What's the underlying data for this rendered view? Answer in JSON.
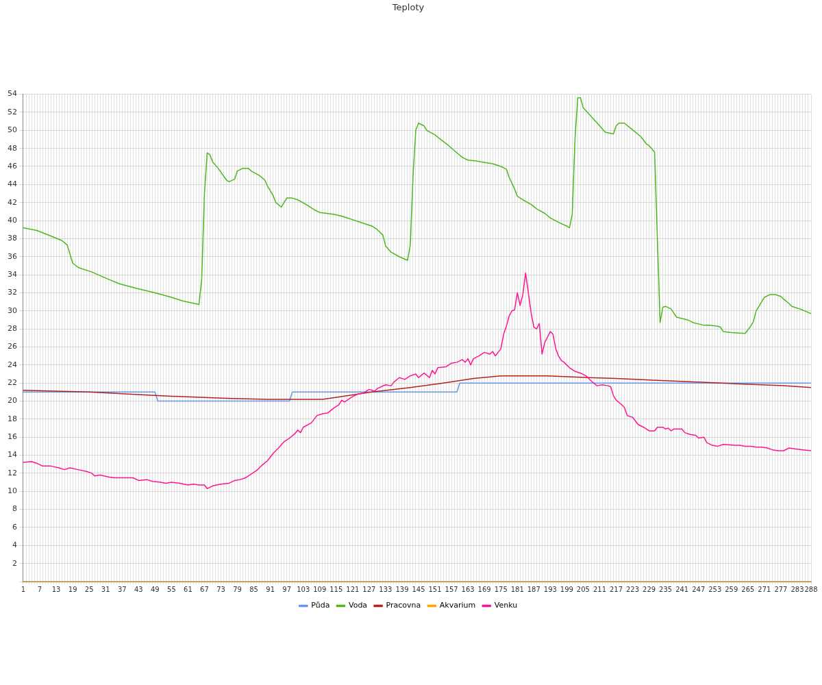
{
  "chart_data": {
    "type": "line",
    "title": "Teploty",
    "xlim": [
      1,
      288
    ],
    "xticks": [
      1,
      {
        "value": 2,
        "label": null
      },
      {
        "value": 3,
        "label": null
      },
      {
        "value": 4,
        "label": null
      },
      {
        "value": 5,
        "label": null
      },
      {
        "value": 6,
        "label": null
      },
      7,
      {
        "value": 8,
        "label": null
      },
      {
        "value": 9,
        "label": null
      },
      {
        "value": 10,
        "label": null
      },
      {
        "value": 11,
        "label": null
      },
      {
        "value": 12,
        "label": null
      },
      13,
      {
        "value": 14,
        "label": null
      },
      {
        "value": 15,
        "label": null
      },
      {
        "value": 16,
        "label": null
      },
      {
        "value": 17,
        "label": null
      },
      {
        "value": 18,
        "label": null
      },
      19,
      {
        "value": 20,
        "label": null
      },
      {
        "value": 21,
        "label": null
      },
      {
        "value": 22,
        "label": null
      },
      {
        "value": 23,
        "label": null
      },
      {
        "value": 24,
        "label": null
      },
      25,
      {
        "value": 26,
        "label": null
      },
      {
        "value": 27,
        "label": null
      },
      {
        "value": 28,
        "label": null
      },
      {
        "value": 29,
        "label": null
      },
      {
        "value": 30,
        "label": null
      },
      31,
      {
        "value": 32,
        "label": null
      },
      {
        "value": 33,
        "label": null
      },
      {
        "value": 34,
        "label": null
      },
      {
        "value": 35,
        "label": null
      },
      {
        "value": 36,
        "label": null
      },
      37,
      {
        "value": 38,
        "label": null
      },
      {
        "value": 39,
        "label": null
      },
      {
        "value": 40,
        "label": null
      },
      {
        "value": 41,
        "label": null
      },
      {
        "value": 42,
        "label": null
      },
      43,
      {
        "value": 44,
        "label": null
      },
      {
        "value": 45,
        "label": null
      },
      {
        "value": 46,
        "label": null
      },
      {
        "value": 47,
        "label": null
      },
      {
        "value": 48,
        "label": null
      },
      49,
      {
        "value": 50,
        "label": null
      },
      {
        "value": 51,
        "label": null
      },
      {
        "value": 52,
        "label": null
      },
      {
        "value": 53,
        "label": null
      },
      {
        "value": 54,
        "label": null
      },
      55,
      {
        "value": 56,
        "label": null
      },
      {
        "value": 57,
        "label": null
      },
      {
        "value": 58,
        "label": null
      },
      {
        "value": 59,
        "label": null
      },
      {
        "value": 60,
        "label": null
      },
      61,
      {
        "value": 62,
        "label": null
      },
      {
        "value": 63,
        "label": null
      },
      {
        "value": 64,
        "label": null
      },
      {
        "value": 65,
        "label": null
      },
      {
        "value": 66,
        "label": null
      },
      67,
      {
        "value": 68,
        "label": null
      },
      {
        "value": 69,
        "label": null
      },
      {
        "value": 70,
        "label": null
      },
      {
        "value": 71,
        "label": null
      },
      {
        "value": 72,
        "label": null
      },
      73,
      {
        "value": 74,
        "label": null
      },
      {
        "value": 75,
        "label": null
      },
      {
        "value": 76,
        "label": null
      },
      {
        "value": 77,
        "label": null
      },
      {
        "value": 78,
        "label": null
      },
      79,
      {
        "value": 80,
        "label": null
      },
      {
        "value": 81,
        "label": null
      },
      {
        "value": 82,
        "label": null
      },
      {
        "value": 83,
        "label": null
      },
      {
        "value": 84,
        "label": null
      },
      85,
      {
        "value": 86,
        "label": null
      },
      {
        "value": 87,
        "label": null
      },
      {
        "value": 88,
        "label": null
      },
      {
        "value": 89,
        "label": null
      },
      {
        "value": 90,
        "label": null
      },
      91,
      {
        "value": 92,
        "label": null
      },
      {
        "value": 93,
        "label": null
      },
      {
        "value": 94,
        "label": null
      },
      {
        "value": 95,
        "label": null
      },
      {
        "value": 96,
        "label": null
      },
      97,
      {
        "value": 98,
        "label": null
      },
      {
        "value": 99,
        "label": null
      },
      {
        "value": 100,
        "label": null
      },
      {
        "value": 101,
        "label": null
      },
      {
        "value": 102,
        "label": null
      },
      103,
      {
        "value": 104,
        "label": null
      },
      {
        "value": 105,
        "label": null
      },
      {
        "value": 106,
        "label": null
      },
      {
        "value": 107,
        "label": null
      },
      {
        "value": 108,
        "label": null
      },
      109,
      {
        "value": 110,
        "label": null
      },
      {
        "value": 111,
        "label": null
      },
      {
        "value": 112,
        "label": null
      },
      {
        "value": 113,
        "label": null
      },
      {
        "value": 114,
        "label": null
      },
      115,
      {
        "value": 116,
        "label": null
      },
      {
        "value": 117,
        "label": null
      },
      {
        "value": 118,
        "label": null
      },
      {
        "value": 119,
        "label": null
      },
      {
        "value": 120,
        "label": null
      },
      121,
      {
        "value": 122,
        "label": null
      },
      {
        "value": 123,
        "label": null
      },
      {
        "value": 124,
        "label": null
      },
      {
        "value": 125,
        "label": null
      },
      {
        "value": 126,
        "label": null
      },
      127,
      {
        "value": 128,
        "label": null
      },
      {
        "value": 129,
        "label": null
      },
      {
        "value": 130,
        "label": null
      },
      {
        "value": 131,
        "label": null
      },
      {
        "value": 132,
        "label": null
      },
      133,
      {
        "value": 134,
        "label": null
      },
      {
        "value": 135,
        "label": null
      },
      {
        "value": 136,
        "label": null
      },
      {
        "value": 137,
        "label": null
      },
      {
        "value": 138,
        "label": null
      },
      139,
      {
        "value": 140,
        "label": null
      },
      {
        "value": 141,
        "label": null
      },
      {
        "value": 142,
        "label": null
      },
      {
        "value": 143,
        "label": null
      },
      {
        "value": 144,
        "label": null
      },
      145,
      {
        "value": 146,
        "label": null
      },
      {
        "value": 147,
        "label": null
      },
      {
        "value": 148,
        "label": null
      },
      {
        "value": 149,
        "label": null
      },
      {
        "value": 150,
        "label": null
      },
      151,
      {
        "value": 152,
        "label": null
      },
      {
        "value": 153,
        "label": null
      },
      {
        "value": 154,
        "label": null
      },
      {
        "value": 155,
        "label": null
      },
      {
        "value": 156,
        "label": null
      },
      157,
      {
        "value": 158,
        "label": null
      },
      {
        "value": 159,
        "label": null
      },
      {
        "value": 160,
        "label": null
      },
      {
        "value": 161,
        "label": null
      },
      {
        "value": 162,
        "label": null
      },
      163,
      {
        "value": 164,
        "label": null
      },
      {
        "value": 165,
        "label": null
      },
      {
        "value": 166,
        "label": null
      },
      {
        "value": 167,
        "label": null
      },
      {
        "value": 168,
        "label": null
      },
      169,
      {
        "value": 170,
        "label": null
      },
      {
        "value": 171,
        "label": null
      },
      {
        "value": 172,
        "label": null
      },
      {
        "value": 173,
        "label": null
      },
      {
        "value": 174,
        "label": null
      },
      175,
      {
        "value": 176,
        "label": null
      },
      {
        "value": 177,
        "label": null
      },
      {
        "value": 178,
        "label": null
      },
      {
        "value": 179,
        "label": null
      },
      {
        "value": 180,
        "label": null
      },
      181,
      {
        "value": 182,
        "label": null
      },
      {
        "value": 183,
        "label": null
      },
      {
        "value": 184,
        "label": null
      },
      {
        "value": 185,
        "label": null
      },
      {
        "value": 186,
        "label": null
      },
      187,
      {
        "value": 188,
        "label": null
      },
      {
        "value": 189,
        "label": null
      },
      {
        "value": 190,
        "label": null
      },
      {
        "value": 191,
        "label": null
      },
      {
        "value": 192,
        "label": null
      },
      193,
      {
        "value": 194,
        "label": null
      },
      {
        "value": 195,
        "label": null
      },
      {
        "value": 196,
        "label": null
      },
      {
        "value": 197,
        "label": null
      },
      {
        "value": 198,
        "label": null
      },
      199,
      {
        "value": 200,
        "label": null
      },
      {
        "value": 201,
        "label": null
      },
      {
        "value": 202,
        "label": null
      },
      {
        "value": 203,
        "label": null
      },
      {
        "value": 204,
        "label": null
      },
      205,
      {
        "value": 206,
        "label": null
      },
      {
        "value": 207,
        "label": null
      },
      {
        "value": 208,
        "label": null
      },
      {
        "value": 209,
        "label": null
      },
      {
        "value": 210,
        "label": null
      },
      211,
      {
        "value": 212,
        "label": null
      },
      {
        "value": 213,
        "label": null
      },
      {
        "value": 214,
        "label": null
      },
      {
        "value": 215,
        "label": null
      },
      {
        "value": 216,
        "label": null
      },
      217,
      {
        "value": 218,
        "label": null
      },
      {
        "value": 219,
        "label": null
      },
      {
        "value": 220,
        "label": null
      },
      {
        "value": 221,
        "label": null
      },
      {
        "value": 222,
        "label": null
      },
      223,
      {
        "value": 224,
        "label": null
      },
      {
        "value": 225,
        "label": null
      },
      {
        "value": 226,
        "label": null
      },
      {
        "value": 227,
        "label": null
      },
      {
        "value": 228,
        "label": null
      },
      229,
      {
        "value": 230,
        "label": null
      },
      {
        "value": 231,
        "label": null
      },
      {
        "value": 232,
        "label": null
      },
      {
        "value": 233,
        "label": null
      },
      {
        "value": 234,
        "label": null
      },
      235,
      {
        "value": 236,
        "label": null
      },
      {
        "value": 237,
        "label": null
      },
      {
        "value": 238,
        "label": null
      },
      {
        "value": 239,
        "label": null
      },
      {
        "value": 240,
        "label": null
      },
      241,
      {
        "value": 242,
        "label": null
      },
      {
        "value": 243,
        "label": null
      },
      {
        "value": 244,
        "label": null
      },
      {
        "value": 245,
        "label": null
      },
      {
        "value": 246,
        "label": null
      },
      247,
      {
        "value": 248,
        "label": null
      },
      {
        "value": 249,
        "label": null
      },
      {
        "value": 250,
        "label": null
      },
      {
        "value": 251,
        "label": null
      },
      {
        "value": 252,
        "label": null
      },
      253,
      {
        "value": 254,
        "label": null
      },
      {
        "value": 255,
        "label": null
      },
      {
        "value": 256,
        "label": null
      },
      {
        "value": 257,
        "label": null
      },
      {
        "value": 258,
        "label": null
      },
      259,
      {
        "value": 260,
        "label": null
      },
      {
        "value": 261,
        "label": null
      },
      {
        "value": 262,
        "label": null
      },
      {
        "value": 263,
        "label": null
      },
      {
        "value": 264,
        "label": null
      },
      265,
      {
        "value": 266,
        "label": null
      },
      {
        "value": 267,
        "label": null
      },
      {
        "value": 268,
        "label": null
      },
      {
        "value": 269,
        "label": null
      },
      {
        "value": 270,
        "label": null
      },
      271,
      {
        "value": 272,
        "label": null
      },
      {
        "value": 273,
        "label": null
      },
      {
        "value": 274,
        "label": null
      },
      {
        "value": 275,
        "label": null
      },
      {
        "value": 276,
        "label": null
      },
      277,
      {
        "value": 278,
        "label": null
      },
      {
        "value": 279,
        "label": null
      },
      {
        "value": 280,
        "label": null
      },
      {
        "value": 281,
        "label": null
      },
      {
        "value": 282,
        "label": null
      },
      283,
      {
        "value": 284,
        "label": null
      },
      {
        "value": 285,
        "label": null
      },
      {
        "value": 286,
        "label": null
      },
      {
        "value": 287,
        "label": null
      },
      288
    ],
    "ylim": [
      0,
      54
    ],
    "yticks": [
      {
        "value": 0,
        "label": null
      },
      2,
      4,
      6,
      8,
      10,
      12,
      14,
      16,
      18,
      20,
      22,
      24,
      26,
      28,
      30,
      32,
      34,
      36,
      38,
      40,
      42,
      44,
      46,
      48,
      50,
      52,
      54
    ],
    "grid": true,
    "legend": "bottom",
    "marker": "none",
    "line_style": "solid",
    "series": [
      {
        "name": "Půda",
        "color": "#6495ed",
        "x": [
          1,
          49,
          50,
          98,
          99,
          159,
          160,
          288
        ],
        "values": [
          21,
          21,
          20,
          20,
          21,
          21,
          22,
          22
        ]
      },
      {
        "name": "Voda",
        "color": "#4cb81c",
        "x": [
          1,
          6,
          11,
          15,
          17,
          19,
          21,
          26,
          32,
          36,
          42,
          49,
          55,
          59,
          65,
          66,
          67,
          68,
          69,
          70,
          72,
          75,
          76,
          78,
          79,
          81,
          83,
          84,
          87,
          89,
          90,
          92,
          93,
          95,
          97,
          99,
          101,
          104,
          107,
          109,
          114,
          117,
          120,
          124,
          128,
          130,
          132,
          133,
          135,
          138,
          141,
          142,
          143,
          144,
          145,
          147,
          148,
          151,
          153,
          156,
          159,
          161,
          163,
          166,
          168,
          172,
          175,
          177,
          178,
          180,
          181,
          183,
          186,
          188,
          191,
          193,
          196,
          199,
          200,
          201,
          202,
          203,
          204,
          205,
          208,
          211,
          213,
          216,
          217,
          218,
          220,
          222,
          224,
          226,
          228,
          229,
          231,
          233,
          234,
          235,
          237,
          239,
          243,
          245,
          249,
          251,
          254,
          255,
          256,
          259,
          264,
          266,
          267,
          268,
          270,
          271,
          273,
          275,
          277,
          278,
          280,
          281,
          284,
          288
        ],
        "values": [
          39.2,
          38.9,
          38.3,
          37.8,
          37.3,
          35.3,
          34.8,
          34.3,
          33.5,
          33,
          32.5,
          32,
          31.5,
          31.1,
          30.7,
          33.5,
          43,
          47.5,
          47.3,
          46.5,
          45.8,
          44.5,
          44.3,
          44.6,
          45.5,
          45.8,
          45.8,
          45.5,
          45,
          44.5,
          43.8,
          42.8,
          42,
          41.5,
          42.5,
          42.5,
          42.3,
          41.8,
          41.2,
          40.9,
          40.7,
          40.5,
          40.2,
          39.8,
          39.4,
          39,
          38.4,
          37.2,
          36.5,
          36,
          35.6,
          37.3,
          45,
          50,
          50.8,
          50.5,
          50,
          49.5,
          49,
          48.3,
          47.5,
          47,
          46.7,
          46.6,
          46.5,
          46.3,
          46,
          45.7,
          44.8,
          43.5,
          42.7,
          42.3,
          41.8,
          41.3,
          40.8,
          40.3,
          39.8,
          39.4,
          39.2,
          40.7,
          49,
          53.6,
          53.6,
          52.5,
          51.5,
          50.5,
          49.8,
          49.6,
          50.5,
          50.8,
          50.8,
          50.3,
          49.8,
          49.3,
          48.5,
          48.3,
          47.6,
          28.7,
          30.4,
          30.5,
          30.2,
          29.3,
          29,
          28.7,
          28.4,
          28.4,
          28.3,
          28.2,
          27.7,
          27.6,
          27.5,
          28.3,
          28.8,
          30,
          31,
          31.5,
          31.8,
          31.8,
          31.6,
          31.3,
          30.8,
          30.5,
          30.2,
          29.7
        ]
      },
      {
        "name": "Pracovna",
        "color": "#b22222",
        "x": [
          1,
          25,
          50,
          75,
          90,
          110,
          128,
          142,
          154,
          165,
          175,
          183,
          192,
          207,
          217,
          232,
          247,
          262,
          278,
          288
        ],
        "values": [
          21.2,
          21,
          20.6,
          20.3,
          20.2,
          20.2,
          21,
          21.5,
          22,
          22.5,
          22.8,
          22.8,
          22.8,
          22.6,
          22.5,
          22.3,
          22.1,
          21.9,
          21.7,
          21.5
        ]
      },
      {
        "name": "Akvarium",
        "color": "#ffa500",
        "x": [
          1,
          288
        ],
        "values": [
          0,
          0
        ]
      },
      {
        "name": "Venku",
        "color": "#ff1493",
        "x": [
          1,
          4,
          6,
          8,
          11,
          14,
          16,
          18,
          21,
          24,
          26,
          27,
          29,
          32,
          34,
          37,
          41,
          43,
          46,
          48,
          51,
          53,
          55,
          58,
          61,
          63,
          65,
          67,
          68,
          70,
          73,
          76,
          78,
          80,
          82,
          84,
          86,
          88,
          90,
          92,
          94,
          96,
          98,
          100,
          101,
          102,
          103,
          106,
          108,
          110,
          112,
          114,
          116,
          117,
          118,
          121,
          123,
          125,
          127,
          129,
          130,
          133,
          135,
          136,
          138,
          140,
          142,
          144,
          145,
          147,
          149,
          150,
          151,
          152,
          155,
          157,
          159,
          161,
          162,
          163,
          164,
          165,
          167,
          169,
          171,
          172,
          173,
          175,
          176,
          177,
          178,
          179,
          180,
          181,
          182,
          183,
          184,
          185,
          186,
          187,
          188,
          189,
          190,
          191,
          192,
          193,
          194,
          195,
          196,
          197,
          198,
          200,
          202,
          204,
          206,
          207,
          208,
          210,
          212,
          214,
          215,
          216,
          217,
          219,
          220,
          221,
          223,
          225,
          227,
          229,
          231,
          232,
          234,
          235,
          236,
          237,
          238,
          241,
          242,
          244,
          246,
          247,
          249,
          250,
          252,
          254,
          256,
          260,
          262,
          264,
          266,
          268,
          270,
          272,
          274,
          276,
          278,
          280,
          282,
          285,
          288
        ],
        "values": [
          13.2,
          13.3,
          13.1,
          12.8,
          12.8,
          12.6,
          12.4,
          12.6,
          12.4,
          12.2,
          12,
          11.7,
          11.8,
          11.6,
          11.5,
          11.5,
          11.5,
          11.2,
          11.3,
          11.1,
          11,
          10.9,
          11,
          10.9,
          10.7,
          10.8,
          10.7,
          10.7,
          10.3,
          10.6,
          10.8,
          10.9,
          11.2,
          11.3,
          11.5,
          11.9,
          12.3,
          12.9,
          13.4,
          14.2,
          14.8,
          15.5,
          15.9,
          16.4,
          16.8,
          16.5,
          17.1,
          17.6,
          18.4,
          18.6,
          18.7,
          19.2,
          19.6,
          20.1,
          19.9,
          20.5,
          20.8,
          20.9,
          21.3,
          21.1,
          21.4,
          21.8,
          21.7,
          22.1,
          22.6,
          22.4,
          22.8,
          23,
          22.6,
          23.1,
          22.6,
          23.4,
          23,
          23.7,
          23.8,
          24.2,
          24.3,
          24.6,
          24.3,
          24.7,
          24,
          24.7,
          25,
          25.4,
          25.2,
          25.5,
          25,
          25.8,
          27.4,
          28.3,
          29.4,
          30,
          30.1,
          32,
          30.6,
          31.8,
          34.2,
          32,
          29.8,
          28.2,
          28,
          28.6,
          25.2,
          26.5,
          27.1,
          27.7,
          27.4,
          25.8,
          25,
          24.5,
          24.3,
          23.7,
          23.3,
          23.1,
          22.8,
          22.5,
          22.2,
          21.7,
          21.8,
          21.7,
          21.6,
          20.6,
          20.1,
          19.6,
          19.3,
          18.4,
          18.2,
          17.4,
          17.1,
          16.7,
          16.7,
          17.1,
          17.1,
          16.9,
          17,
          16.7,
          16.9,
          16.9,
          16.5,
          16.3,
          16.2,
          15.9,
          16,
          15.4,
          15.1,
          15,
          15.2,
          15.1,
          15.1,
          15,
          15,
          14.9,
          14.9,
          14.8,
          14.6,
          14.5,
          14.5,
          14.8,
          14.7,
          14.6,
          14.5
        ]
      }
    ]
  }
}
